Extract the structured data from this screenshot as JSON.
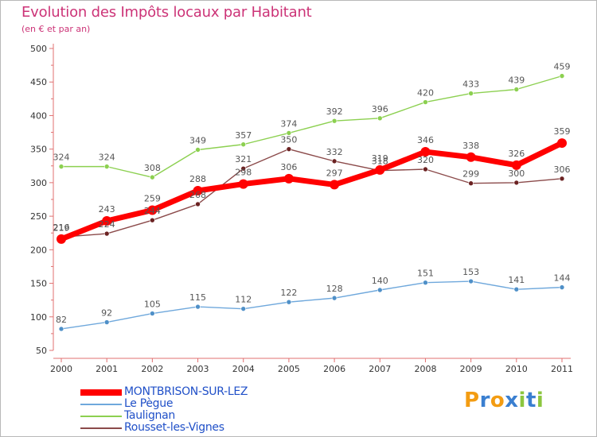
{
  "title": "Evolution des Impôts locaux par Habitant",
  "subtitle": "(en € et par an)",
  "chart_data": {
    "type": "line",
    "title": "Evolution des Impôts locaux par Habitant",
    "subtitle": "(en € et par an)",
    "x": [
      "2000",
      "2001",
      "2002",
      "2003",
      "2004",
      "2005",
      "2006",
      "2007",
      "2008",
      "2009",
      "2010",
      "2011"
    ],
    "ylim": [
      50,
      500
    ],
    "yticks": [
      50,
      100,
      150,
      200,
      250,
      300,
      350,
      400,
      450,
      500
    ],
    "grid": false,
    "legend_position": "bottom-left",
    "series": [
      {
        "name": "Taulignan",
        "color": "#8cd050",
        "marker": "#8cd050",
        "values": [
          324,
          324,
          308,
          349,
          357,
          374,
          392,
          396,
          420,
          433,
          439,
          459
        ],
        "labels": [
          "324",
          "324",
          "308",
          "349",
          "357",
          "374",
          "392",
          "396",
          "420",
          "433",
          "439",
          "459"
        ]
      },
      {
        "name": "Le Pègue",
        "color": "#6fa8dc",
        "marker": "#4f90c8",
        "values": [
          82,
          92,
          105,
          115,
          112,
          122,
          128,
          140,
          151,
          153,
          141,
          144
        ],
        "labels": [
          "82",
          "92",
          "105",
          "115",
          "112",
          "122",
          "128",
          "140",
          "151",
          "153",
          "141",
          "144"
        ]
      },
      {
        "name": "Rousset-les-Vignes",
        "color": "#8b4a4a",
        "marker": "#6b2222",
        "values": [
          219,
          224,
          244,
          268,
          321,
          350,
          332,
          318,
          320,
          299,
          300,
          306
        ],
        "labels": [
          "219",
          "224",
          "244",
          "268",
          "321",
          "350",
          "332",
          "318",
          "320",
          "299",
          "300",
          "306"
        ]
      },
      {
        "name": "MONTBRISON-SUR-LEZ",
        "color": "#ff0000",
        "marker": "#ff0000",
        "values": [
          216,
          243,
          259,
          288,
          298,
          306,
          297,
          319,
          346,
          338,
          326,
          359
        ],
        "labels": [
          "216",
          "243",
          "259",
          "288",
          "298",
          "306",
          "297",
          "319",
          "346",
          "338",
          "326",
          "359"
        ]
      }
    ]
  },
  "legend": [
    {
      "label": "MONTBRISON-SUR-LEZ",
      "color": "#ff0000"
    },
    {
      "label": "Le Pègue",
      "color": "#6fa8dc"
    },
    {
      "label": "Taulignan",
      "color": "#8cd050"
    },
    {
      "label": "Rousset-les-Vignes",
      "color": "#8b4a4a"
    }
  ],
  "logo": {
    "text": "Proxiti",
    "letters": [
      "P",
      "r",
      "o",
      "x",
      "i",
      "t",
      "i"
    ],
    "colors": [
      "#f39c12",
      "#3a7fd0",
      "#f39c12",
      "#3a7fd0",
      "#8cc63f",
      "#3a7fd0",
      "#8cc63f"
    ]
  }
}
